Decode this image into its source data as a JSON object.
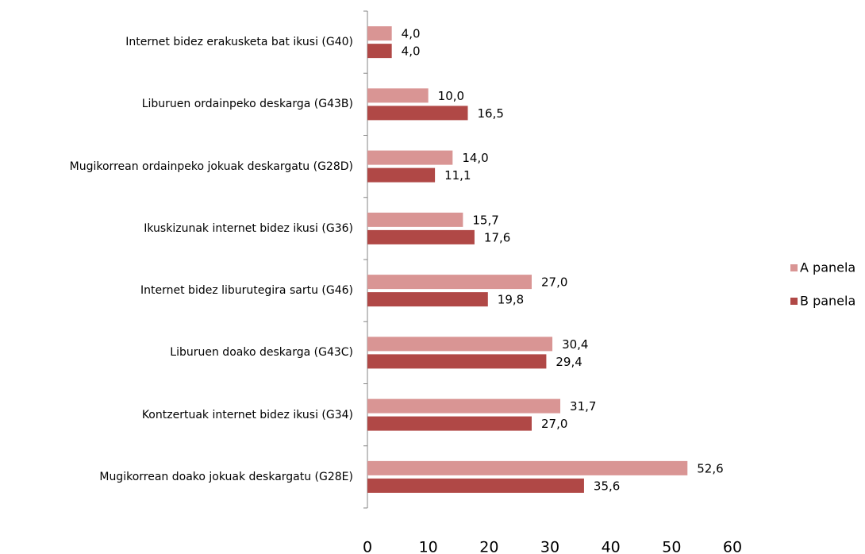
{
  "chart_data": {
    "type": "bar",
    "orientation": "horizontal",
    "categories": [
      "Internet bidez erakusketa bat ikusi (G40)",
      "Liburuen ordainpeko deskarga (G43B)",
      "Mugikorrean ordainpeko jokuak deskargatu (G28D)",
      "Ikuskizunak internet bidez ikusi (G36)",
      "Internet bidez liburutegira sartu (G46)",
      "Liburuen doako deskarga (G43C)",
      "Kontzertuak internet bidez ikusi (G34)",
      "Mugikorrean doako jokuak deskargatu (G28E)"
    ],
    "series": [
      {
        "name": "A panela",
        "color": "#d99594",
        "values": [
          4.0,
          10.0,
          14.0,
          15.7,
          27.0,
          30.4,
          31.7,
          52.6
        ],
        "value_labels": [
          "4,0",
          "10,0",
          "14,0",
          "15,7",
          "27,0",
          "30,4",
          "31,7",
          "52,6"
        ]
      },
      {
        "name": "B panela",
        "color": "#b04846",
        "values": [
          4.0,
          16.5,
          11.1,
          17.6,
          19.8,
          29.4,
          27.0,
          35.6
        ],
        "value_labels": [
          "4,0",
          "16,5",
          "11,1",
          "17,6",
          "19,8",
          "29,4",
          "27,0",
          "35,6"
        ]
      }
    ],
    "xlim": [
      0,
      60
    ],
    "xticks": [
      0,
      10,
      20,
      30,
      40,
      50,
      60
    ],
    "legend": "right"
  }
}
